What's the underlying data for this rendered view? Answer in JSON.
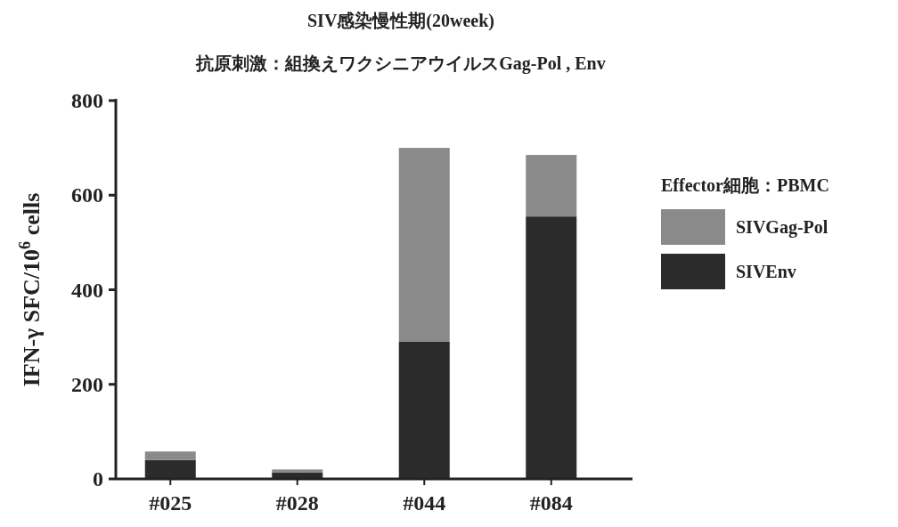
{
  "chart_data": {
    "type": "bar",
    "title": "SIV感染慢性期(20week)",
    "subtitle": "抗原刺激：組換えワクシニアウイルスGag-Pol , Env",
    "ylabel": "IFN-γ SFC/10$^{6}$ cells",
    "legend_title": "Effector細胞：PBMC",
    "categories": [
      "#025",
      "#028",
      "#044",
      "#084"
    ],
    "stacked": true,
    "series": [
      {
        "name": "SIVEnv",
        "color": "#2b2b2b",
        "values": [
          40,
          14,
          290,
          555
        ]
      },
      {
        "name": "SIVGag-Pol",
        "color": "#8a8a8a",
        "values": [
          18,
          6,
          410,
          130
        ]
      }
    ],
    "ylim": [
      0,
      800
    ],
    "yticks": [
      0,
      200,
      400,
      600,
      800
    ],
    "legend": "right"
  }
}
